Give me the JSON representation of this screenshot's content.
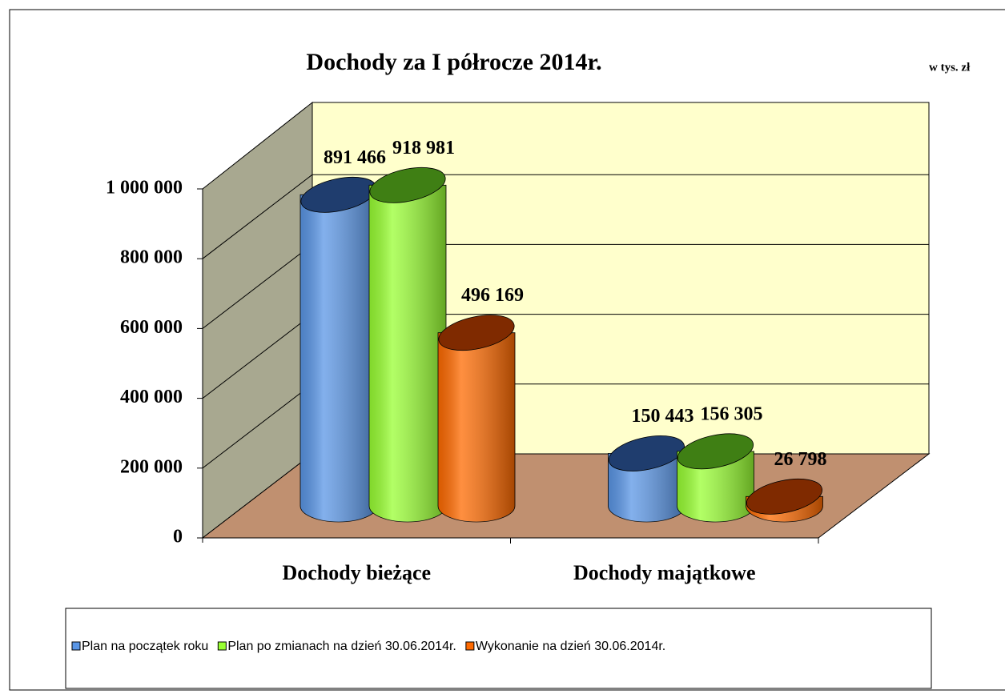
{
  "chart_data": {
    "type": "bar3d",
    "title": "Dochody za I półrocze 2014r.",
    "subtitle": "w tys. zł",
    "categories": [
      "Dochody bieżące",
      "Dochody majątkowe"
    ],
    "series": [
      {
        "name": "Plan na początek roku",
        "color": "#5a96e6",
        "top_color": "#1f3d6e",
        "values": [
          891466,
          150443
        ],
        "value_labels": [
          "891 466",
          "150 443"
        ]
      },
      {
        "name": "Plan po zmianach na dzień 30.06.2014r.",
        "color": "#99ff33",
        "top_color": "#3f7f14",
        "values": [
          918981,
          156305
        ],
        "value_labels": [
          "918 981",
          "156 305"
        ]
      },
      {
        "name": "Wykonanie na dzień 30.06.2014r.",
        "color": "#ff6a00",
        "top_color": "#7f2a00",
        "values": [
          496169,
          26798
        ],
        "value_labels": [
          "496 169",
          "26 798"
        ]
      }
    ],
    "ylim": [
      0,
      1000000
    ],
    "yticks": [
      0,
      {
        "value": 200000,
        "label": "200 000"
      },
      {
        "value": 400000,
        "label": "400 000"
      },
      {
        "value": 600000,
        "label": "600 000"
      },
      {
        "value": 800000,
        "label": "800 000"
      },
      {
        "value": 1000000,
        "label": "1 000 000"
      }
    ],
    "grid": true,
    "legend": "bottom"
  }
}
